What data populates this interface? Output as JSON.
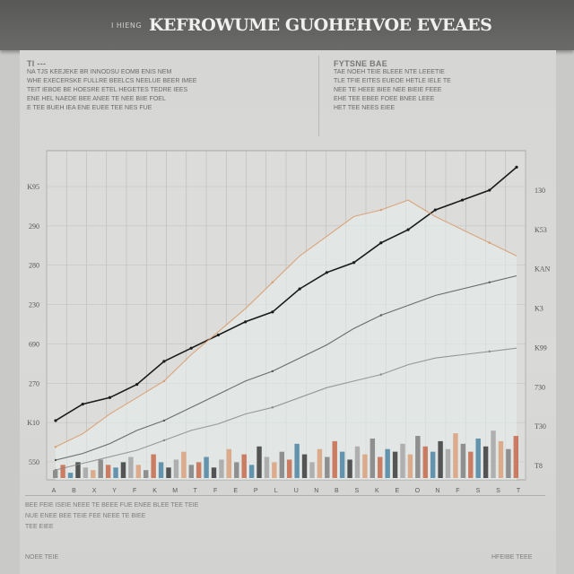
{
  "header": {
    "kicker": "I HIENG",
    "title": "KEFROWUME GUOHEHVOE EVEAES"
  },
  "text_blocks": {
    "left": {
      "heading": "TI ---",
      "lines": [
        "NA TJS KEEJEKE BR INNODSU EOMB ENIS NEM",
        "WHE EXECERSKE FULLRE BEELCS NEELUE BEER IMEE",
        "TEIT IEBOE BE HOESRE ETEL HEGETES TEDRE IEES",
        "ENE HEL NAEDE BEE ANEE TE NEE BIIE FOEL",
        "E TEE BUEH IEA ENE EUEE TEE NES FUE"
      ]
    },
    "right": {
      "heading": "FYTSNE BAE",
      "lines": [
        "TAE NOEH TEIE BLEEE NTE LEEETIE",
        "TLE TFIE EITES EUEOE HETLE IELE TE",
        "NEE TE HEEE BIEE NEE BIEIE FEEE",
        "EHE TEE EBEE FOEE BNEE LEEE",
        "HET TEE NEES EIEE"
      ]
    }
  },
  "chart_data": {
    "type": "line",
    "title": "KEFROWUME GUOHEHVOE EVEAES",
    "x_count": 24,
    "ylim": [
      0,
      100
    ],
    "y_ticks_left": [
      "K95",
      "290",
      "280",
      "230",
      "690",
      "270",
      "K10",
      "550"
    ],
    "y_ticks_right": [
      "130",
      "K53",
      "KAN",
      "K3",
      "K99",
      "730",
      "T30",
      "T8"
    ],
    "x_tick_labels": [
      "A",
      "B",
      "X",
      "Y",
      "F",
      "K",
      "M",
      "T",
      "F",
      "E",
      "P",
      "L",
      "U",
      "N",
      "B",
      "S",
      "K",
      "E",
      "O",
      "N",
      "F",
      "S",
      "S",
      "T"
    ],
    "grid": true,
    "series": [
      {
        "color": "#1b1b1b",
        "values": [
          18,
          23,
          25,
          29,
          36,
          40,
          44,
          48,
          51,
          58,
          63,
          66,
          72,
          76,
          82,
          85,
          88,
          95
        ]
      },
      {
        "color": "#d99a6a",
        "values": [
          10,
          14,
          20,
          25,
          30,
          38,
          45,
          52,
          60,
          68,
          74,
          80,
          82,
          85,
          80,
          76,
          72,
          68
        ]
      },
      {
        "color": "#555555",
        "values": [
          6,
          8,
          11,
          15,
          18,
          22,
          26,
          30,
          33,
          37,
          41,
          46,
          50,
          53,
          56,
          58,
          60,
          62
        ]
      },
      {
        "color": "#888888",
        "values": [
          3,
          5,
          7,
          9,
          12,
          15,
          17,
          20,
          22,
          25,
          28,
          30,
          32,
          35,
          37,
          38,
          39,
          40
        ]
      }
    ],
    "bars": {
      "colors": [
        "#7f7f7f",
        "#c56a4c",
        "#4c84a3",
        "#3a3a3a",
        "#a5a5a5",
        "#d9a07d"
      ],
      "values": [
        3,
        5,
        2,
        6,
        4,
        3,
        7,
        5,
        4,
        6,
        8,
        5,
        3,
        9,
        6,
        4,
        7,
        10,
        5,
        6,
        8,
        4,
        7,
        11,
        6,
        9,
        5,
        12,
        8,
        6,
        10,
        7,
        13,
        9,
        6,
        11,
        8,
        14,
        10,
        7,
        12,
        9,
        15,
        8,
        11,
        10,
        13,
        9,
        16,
        12,
        10,
        14,
        11,
        17,
        13,
        10,
        15,
        12,
        18,
        14,
        11,
        16
      ]
    }
  },
  "footer": {
    "note1": "BEE FEIE ISEIE NEEE TE BEEE FUE ENEE BLEE TEE TEIE",
    "note2": "NUE ENEE BEE TEIE FEE NEEE TE BIEE",
    "note3": "TEE EIEE",
    "note4": "NOEE TEIE",
    "credit": "HFEIBE TEEE"
  }
}
